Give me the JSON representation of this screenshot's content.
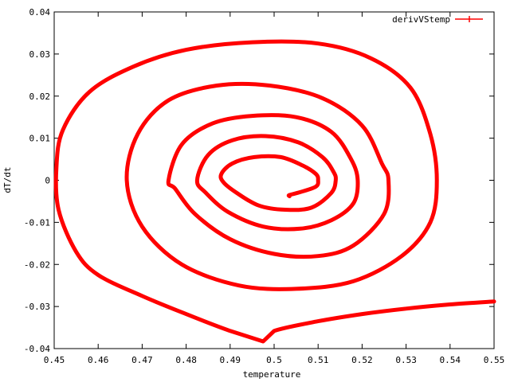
{
  "chart_data": {
    "type": "line",
    "title": "",
    "xlabel": "temperature",
    "ylabel": "dT/dt",
    "xlim": [
      0.45,
      0.55
    ],
    "ylim": [
      -0.04,
      0.04
    ],
    "x_ticks": [
      "0.45",
      "0.46",
      "0.47",
      "0.48",
      "0.49",
      "0.5",
      "0.51",
      "0.52",
      "0.53",
      "0.54",
      "0.55"
    ],
    "y_ticks": [
      "-0.04",
      "-0.03",
      "-0.02",
      "-0.01",
      "0",
      "0.01",
      "0.02",
      "0.03",
      "0.04"
    ],
    "grid": false,
    "legend_position": "top-right",
    "series": [
      {
        "name": "derivVStemp",
        "color": "#ff0000",
        "x": [
          0.55,
          0.54,
          0.53,
          0.52,
          0.51,
          0.5,
          0.4975,
          0.49,
          0.48,
          0.47,
          0.46,
          0.455,
          0.451,
          0.4505,
          0.452,
          0.458,
          0.468,
          0.48,
          0.495,
          0.51,
          0.522,
          0.531,
          0.5355,
          0.537,
          0.5355,
          0.529,
          0.518,
          0.505,
          0.492,
          0.479,
          0.47,
          0.4665,
          0.469,
          0.476,
          0.487,
          0.499,
          0.511,
          0.52,
          0.5245,
          0.526,
          0.525,
          0.518,
          0.51,
          0.5,
          0.49,
          0.482,
          0.4775,
          0.476,
          0.479,
          0.486,
          0.495,
          0.505,
          0.513,
          0.5175,
          0.519,
          0.518,
          0.513,
          0.506,
          0.4975,
          0.4895,
          0.4845,
          0.4825,
          0.485,
          0.4905,
          0.498,
          0.5055,
          0.511,
          0.5135,
          0.514,
          0.513,
          0.5085,
          0.5025,
          0.4965,
          0.4915,
          0.4885,
          0.488,
          0.4905,
          0.4955,
          0.5015,
          0.5065,
          0.5095,
          0.51,
          0.5095,
          0.506,
          0.5035,
          0.5035
        ],
        "y": [
          -0.0288,
          -0.0295,
          -0.0305,
          -0.0318,
          -0.0335,
          -0.0358,
          -0.0383,
          -0.0358,
          -0.0318,
          -0.0275,
          -0.0225,
          -0.017,
          -0.007,
          0.003,
          0.012,
          0.021,
          0.027,
          0.031,
          0.0328,
          0.0325,
          0.029,
          0.022,
          0.011,
          0.0,
          -0.01,
          -0.018,
          -0.024,
          -0.0258,
          -0.025,
          -0.02,
          -0.011,
          0.0,
          0.011,
          0.019,
          0.0225,
          0.0225,
          0.0195,
          0.013,
          0.004,
          0.0,
          -0.008,
          -0.0155,
          -0.018,
          -0.0175,
          -0.014,
          -0.008,
          -0.002,
          0.0,
          0.0085,
          0.0135,
          0.0153,
          0.015,
          0.0115,
          0.005,
          0.0,
          -0.0055,
          -0.0095,
          -0.0115,
          -0.011,
          -0.0075,
          -0.003,
          0.0,
          0.006,
          0.0095,
          0.0105,
          0.009,
          0.0055,
          0.002,
          0.0,
          -0.003,
          -0.0065,
          -0.007,
          -0.006,
          -0.003,
          -0.0005,
          0.0015,
          0.004,
          0.0055,
          0.0055,
          0.0035,
          0.0015,
          0.0,
          -0.0015,
          -0.0028,
          -0.0035,
          -0.0038
        ]
      }
    ]
  }
}
